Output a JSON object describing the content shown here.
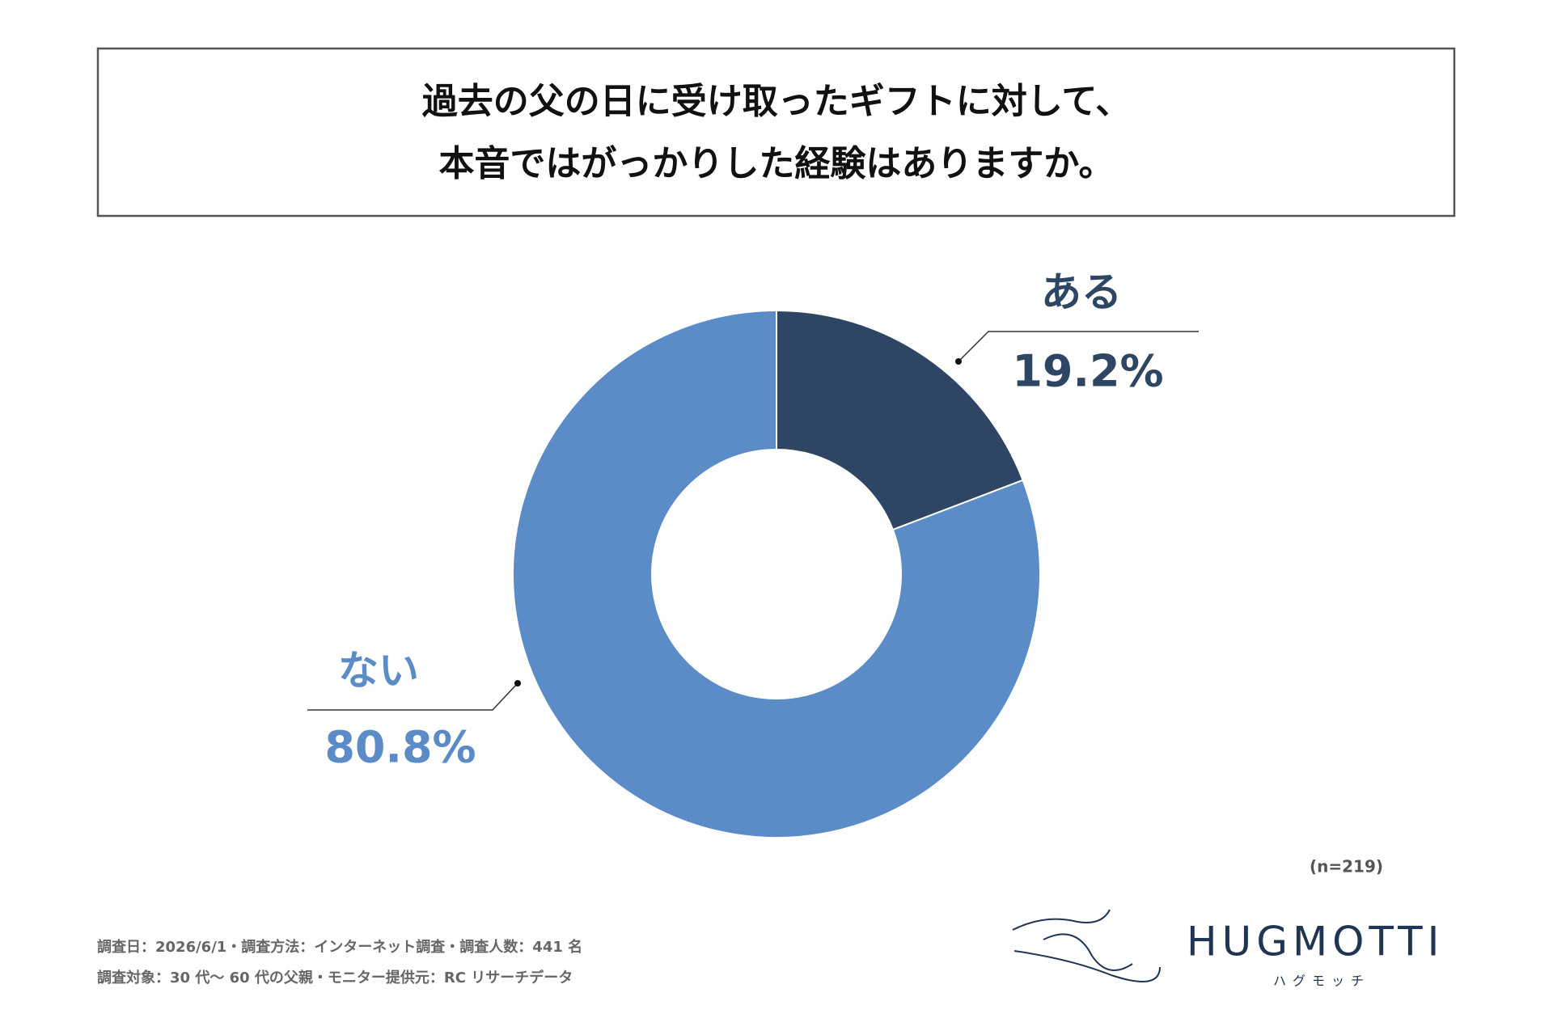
{
  "chart_data": {
    "type": "donut",
    "title": [
      "過去の父の日に受け取ったギフトに対して、",
      "本音ではがっかりした経験はありますか。"
    ],
    "categories": [
      "ある",
      "ない"
    ],
    "values": [
      19.2,
      80.8
    ],
    "value_labels": [
      "19.2%",
      "80.8%"
    ],
    "colors": [
      "#2e4663",
      "#5b8cc7"
    ],
    "note": "(n=219)"
  },
  "footer": [
    "調査日：2026/6/1・調査方法：インターネット調査・調査人数：441 名",
    "調査対象：30 代～ 60 代の父親・モニター提供元：RC リサーチデータ"
  ],
  "logo": {
    "name": "HUGMOTTI",
    "kana": "ハグモッチ"
  }
}
